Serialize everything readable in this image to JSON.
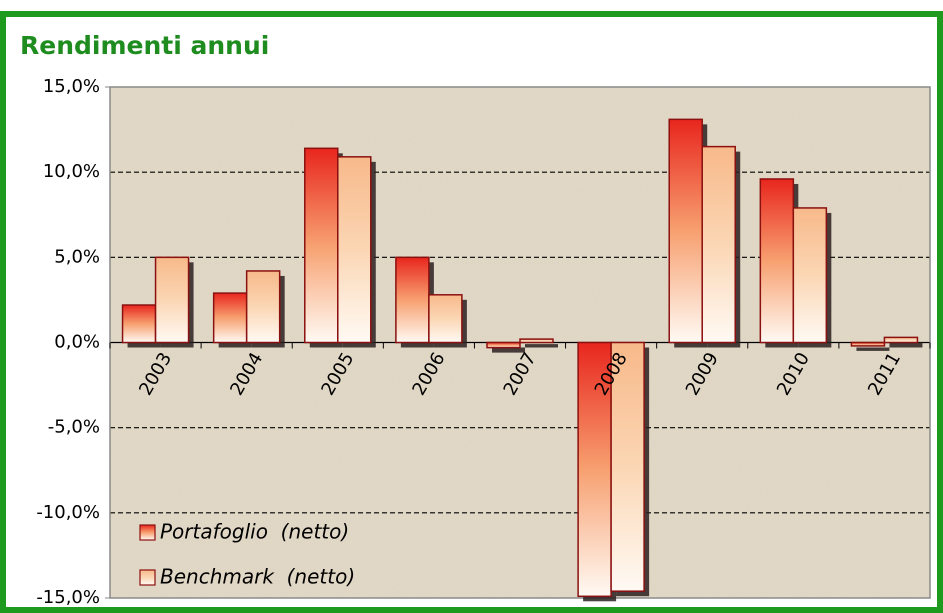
{
  "chart_data": {
    "type": "bar",
    "title": "Rendimenti annui",
    "categories": [
      "2003",
      "2004",
      "2005",
      "2006",
      "2007",
      "2008",
      "2009",
      "2010",
      "2011"
    ],
    "series": [
      {
        "name": "Portafoglio  (netto)",
        "color": "#e8261e",
        "values": [
          2.2,
          2.9,
          11.4,
          5.0,
          -0.3,
          -14.9,
          13.1,
          9.6,
          -0.2
        ]
      },
      {
        "name": "Benchmark  (netto)",
        "color": "#f7b98a",
        "values": [
          5.0,
          4.2,
          10.9,
          2.8,
          0.2,
          -14.6,
          11.5,
          7.9,
          0.3
        ]
      }
    ],
    "ylim": [
      -15,
      15
    ],
    "yticks": [
      {
        "value": -15,
        "label": "-15,0%"
      },
      {
        "value": -10,
        "label": "-10,0%"
      },
      {
        "value": -5,
        "label": "-5,0%"
      },
      {
        "value": 0,
        "label": "0,0%"
      },
      {
        "value": 5,
        "label": "5,0%"
      },
      {
        "value": 10,
        "label": "10,0%"
      },
      {
        "value": 15,
        "label": "15,0%"
      }
    ],
    "grid": true,
    "legend": "lower left"
  }
}
